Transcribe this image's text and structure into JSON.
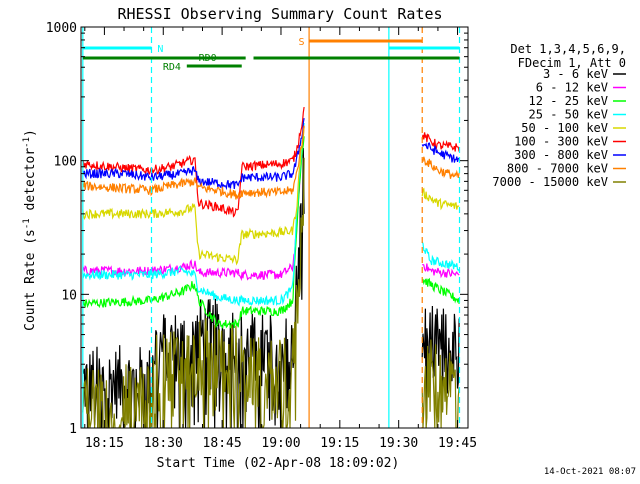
{
  "chart_data": {
    "type": "line",
    "title": "RHESSI Observing Summary Count Rates",
    "xlabel": "Start Time (02-Apr-08 18:09:02)",
    "ylabel": "Count Rate (s",
    "ylabel_sup1": "-1",
    "ylabel_mid": " detector",
    "ylabel_sup2": "-1",
    "ylabel_end": ")",
    "y_scale": "log",
    "ylim": [
      1,
      1000
    ],
    "xlim": [
      "18:09:02",
      "19:47:40"
    ],
    "x_ticks": [
      "18:15",
      "18:30",
      "18:45",
      "19:00",
      "19:15",
      "19:30",
      "19:45"
    ],
    "y_ticks": [
      "1",
      "10",
      "100",
      "1000"
    ],
    "footer_date": "14-Oct-2021 08:07",
    "legend": {
      "placement": "right",
      "header": [
        "Det 1,3,4,5,6,9,",
        "FDecim 1, Att 0"
      ]
    },
    "flags": [
      {
        "label": "N",
        "color": "#00ffff"
      },
      {
        "label": "RD0",
        "color": "#008000"
      },
      {
        "label": "RD4",
        "color": "#008000"
      },
      {
        "label": "S",
        "color": "#ff8000"
      }
    ],
    "vertical_markers": [
      {
        "time": "18:09:30",
        "color": "#00ffff",
        "style": "solid"
      },
      {
        "time": "18:27:00",
        "color": "#00ffff",
        "style": "dashed"
      },
      {
        "time": "19:07:10",
        "color": "#ff8000",
        "style": "solid"
      },
      {
        "time": "19:27:30",
        "color": "#00ffff",
        "style": "solid"
      },
      {
        "time": "19:36:00",
        "color": "#ff8000",
        "style": "dashed"
      },
      {
        "time": "19:45:30",
        "color": "#00ffff",
        "style": "dashed"
      }
    ],
    "series": [
      {
        "name": "3 - 6 keV",
        "color": "#000000",
        "kind": "noisy_low",
        "points": [
          [
            "18:09:30",
            2.2
          ],
          [
            "18:27:00",
            2.2
          ],
          [
            "18:27:30",
            4.0
          ],
          [
            "18:38:00",
            4.2
          ],
          [
            "18:39:00",
            5.0
          ],
          [
            "18:49:00",
            4.8
          ],
          [
            "18:50:00",
            4.0
          ],
          [
            "19:00:00",
            3.8
          ],
          [
            "19:03:00",
            4.0
          ],
          [
            "19:05:00",
            30
          ],
          [
            "19:06:00",
            110
          ],
          [
            "19:36:00",
            4.5
          ],
          [
            "19:45:30",
            4.0
          ]
        ]
      },
      {
        "name": "6 - 12 keV",
        "color": "#ff00ff",
        "kind": "line",
        "points": [
          [
            "18:09:30",
            15
          ],
          [
            "18:27:00",
            15
          ],
          [
            "18:35:00",
            16
          ],
          [
            "18:38:00",
            17
          ],
          [
            "18:39:00",
            14.5
          ],
          [
            "18:49:00",
            14.5
          ],
          [
            "18:50:00",
            14
          ],
          [
            "19:00:00",
            14
          ],
          [
            "19:03:00",
            16
          ],
          [
            "19:04:00",
            30
          ],
          [
            "19:05:00",
            90
          ],
          [
            "19:06:00",
            190
          ],
          [
            "19:36:00",
            17
          ],
          [
            "19:38:00",
            15
          ],
          [
            "19:45:30",
            14
          ]
        ]
      },
      {
        "name": "12 - 25 keV",
        "color": "#00ff00",
        "kind": "line",
        "points": [
          [
            "18:09:30",
            8.5
          ],
          [
            "18:27:00",
            9.0
          ],
          [
            "18:35:00",
            10.5
          ],
          [
            "18:38:00",
            12.0
          ],
          [
            "18:39:00",
            9.0
          ],
          [
            "18:42:00",
            7.0
          ],
          [
            "18:44:00",
            6.0
          ],
          [
            "18:49:00",
            6.0
          ],
          [
            "18:50:00",
            7.5
          ],
          [
            "19:00:00",
            7.5
          ],
          [
            "19:03:00",
            9
          ],
          [
            "19:04:00",
            30
          ],
          [
            "19:05:00",
            90
          ],
          [
            "19:06:00",
            170
          ],
          [
            "19:36:00",
            13
          ],
          [
            "19:40:00",
            11
          ],
          [
            "19:45:30",
            9
          ]
        ]
      },
      {
        "name": "25 - 50 keV",
        "color": "#00ffff",
        "kind": "line",
        "points": [
          [
            "18:09:30",
            14
          ],
          [
            "18:27:00",
            14
          ],
          [
            "18:35:00",
            15
          ],
          [
            "18:38:00",
            14
          ],
          [
            "18:39:00",
            11
          ],
          [
            "18:44:00",
            9.5
          ],
          [
            "18:49:00",
            9
          ],
          [
            "18:50:00",
            9
          ],
          [
            "19:00:00",
            9
          ],
          [
            "19:03:00",
            11
          ],
          [
            "19:04:00",
            40
          ],
          [
            "19:05:00",
            100
          ],
          [
            "19:06:00",
            200
          ],
          [
            "19:36:00",
            24
          ],
          [
            "19:38:00",
            18
          ],
          [
            "19:45:30",
            16
          ]
        ]
      },
      {
        "name": "50 - 100 keV",
        "color": "#d8d800",
        "kind": "line",
        "points": [
          [
            "18:09:30",
            40
          ],
          [
            "18:27:00",
            40
          ],
          [
            "18:35:00",
            42
          ],
          [
            "18:38:00",
            45
          ],
          [
            "18:39:00",
            20
          ],
          [
            "18:49:00",
            18
          ],
          [
            "18:50:00",
            28
          ],
          [
            "19:00:00",
            29
          ],
          [
            "19:03:00",
            30
          ],
          [
            "19:04:00",
            45
          ],
          [
            "19:05:00",
            110
          ],
          [
            "19:06:00",
            180
          ],
          [
            "19:36:00",
            58
          ],
          [
            "19:40:00",
            48
          ],
          [
            "19:45:30",
            45
          ]
        ]
      },
      {
        "name": "100 - 300 keV",
        "color": "#ff0000",
        "kind": "line",
        "points": [
          [
            "18:09:30",
            95
          ],
          [
            "18:20:00",
            88
          ],
          [
            "18:27:00",
            85
          ],
          [
            "18:32:00",
            90
          ],
          [
            "18:37:00",
            100
          ],
          [
            "18:38:00",
            105
          ],
          [
            "18:39:00",
            48
          ],
          [
            "18:44:00",
            45
          ],
          [
            "18:49:00",
            40
          ],
          [
            "18:50:00",
            90
          ],
          [
            "19:00:00",
            95
          ],
          [
            "19:03:00",
            100
          ],
          [
            "19:04:00",
            120
          ],
          [
            "19:05:00",
            170
          ],
          [
            "19:06:00",
            250
          ],
          [
            "19:36:00",
            155
          ],
          [
            "19:40:00",
            130
          ],
          [
            "19:45:30",
            125
          ]
        ]
      },
      {
        "name": "300 - 800 keV",
        "color": "#0000ff",
        "kind": "line",
        "points": [
          [
            "18:09:30",
            80
          ],
          [
            "18:20:00",
            80
          ],
          [
            "18:27:00",
            75
          ],
          [
            "18:35:00",
            80
          ],
          [
            "18:38:00",
            85
          ],
          [
            "18:39:00",
            70
          ],
          [
            "18:44:00",
            68
          ],
          [
            "18:49:00",
            65
          ],
          [
            "18:50:00",
            75
          ],
          [
            "19:00:00",
            75
          ],
          [
            "19:03:00",
            80
          ],
          [
            "19:04:00",
            100
          ],
          [
            "19:05:00",
            140
          ],
          [
            "19:06:00",
            210
          ],
          [
            "19:36:00",
            135
          ],
          [
            "19:40:00",
            115
          ],
          [
            "19:45:30",
            100
          ]
        ]
      },
      {
        "name": "800 - 7000 keV",
        "color": "#ff8000",
        "kind": "line",
        "points": [
          [
            "18:09:30",
            65
          ],
          [
            "18:20:00",
            62
          ],
          [
            "18:27:00",
            60
          ],
          [
            "18:32:00",
            65
          ],
          [
            "18:38:00",
            70
          ],
          [
            "18:39:00",
            63
          ],
          [
            "18:44:00",
            60
          ],
          [
            "18:49:00",
            55
          ],
          [
            "18:50:00",
            58
          ],
          [
            "19:00:00",
            58
          ],
          [
            "19:03:00",
            60
          ],
          [
            "19:04:00",
            80
          ],
          [
            "19:05:00",
            120
          ],
          [
            "19:06:00",
            180
          ],
          [
            "19:36:00",
            105
          ],
          [
            "19:40:00",
            85
          ],
          [
            "19:45:30",
            75
          ]
        ]
      },
      {
        "name": "7000 - 15000 keV",
        "color": "#808000",
        "kind": "noisy_low",
        "points": [
          [
            "18:09:30",
            1.6
          ],
          [
            "18:27:00",
            1.6
          ],
          [
            "18:27:30",
            2.8
          ],
          [
            "18:38:00",
            3.0
          ],
          [
            "18:39:00",
            3.6
          ],
          [
            "18:49:00",
            3.2
          ],
          [
            "18:50:00",
            2.6
          ],
          [
            "19:00:00",
            2.4
          ],
          [
            "19:03:00",
            2.8
          ],
          [
            "19:05:00",
            20
          ],
          [
            "19:06:00",
            90
          ],
          [
            "19:36:00",
            2.5
          ],
          [
            "19:45:30",
            2.2
          ]
        ]
      }
    ]
  }
}
